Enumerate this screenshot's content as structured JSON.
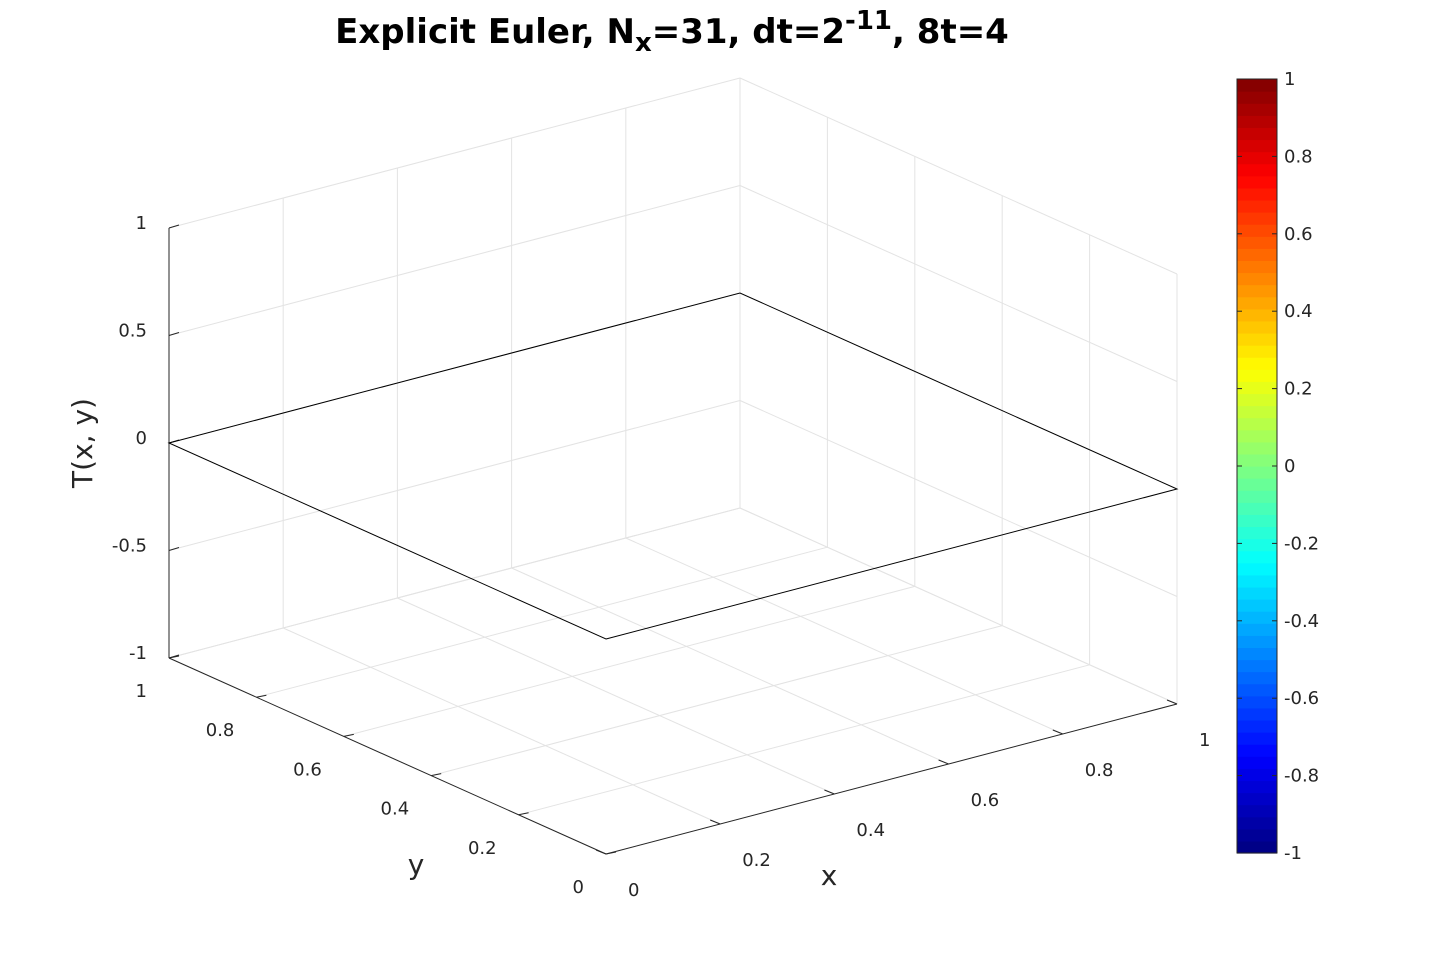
{
  "title": {
    "prefix": "Explicit Euler, N",
    "sub": "x",
    "mid": "=31, dt=2",
    "sup": "-11",
    "suffix": ", 8t=4"
  },
  "chart_data": {
    "type": "surface",
    "title": "Explicit Euler, Nx=31, dt=2^-11, 8t=4",
    "xlabel": "x",
    "ylabel": "y",
    "zlabel": "T(x, y)",
    "xlim": [
      0,
      1
    ],
    "ylim": [
      0,
      1
    ],
    "zlim": [
      -1,
      1
    ],
    "x_ticks": [
      "0",
      "0.2",
      "0.4",
      "0.6",
      "0.8",
      "1"
    ],
    "y_ticks": [
      "0",
      "0.2",
      "0.4",
      "0.6",
      "0.8",
      "1"
    ],
    "z_ticks": [
      "-1",
      "-0.5",
      "0",
      "0.5",
      "1"
    ],
    "grid": true,
    "surface": {
      "x": [
        0,
        1
      ],
      "y": [
        0,
        1
      ],
      "z": [
        [
          0,
          0
        ],
        [
          0,
          0
        ]
      ],
      "edge_color": "#000000"
    },
    "colorbar": {
      "colormap": "jet",
      "limits": [
        -1,
        1
      ],
      "ticks": [
        "-1",
        "-0.8",
        "-0.6",
        "-0.4",
        "-0.2",
        "0",
        "0.2",
        "0.4",
        "0.6",
        "0.8",
        "1"
      ]
    }
  }
}
